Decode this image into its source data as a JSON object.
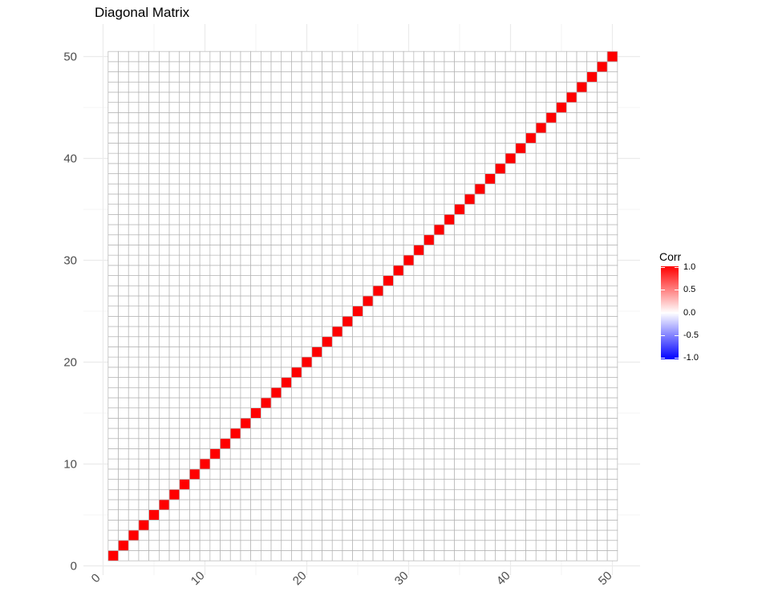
{
  "chart_data": {
    "type": "heatmap",
    "title": "Diagonal Matrix",
    "n": 50,
    "x_ticks": [
      0,
      10,
      20,
      30,
      40,
      50
    ],
    "y_ticks": [
      0,
      10,
      20,
      30,
      40,
      50
    ],
    "xlim": [
      0,
      51
    ],
    "ylim": [
      0,
      51
    ],
    "diagonal_value": 1.0,
    "off_diagonal_value": 0.0,
    "cells": "value 1.0 at (i, i) for i = 1..50; value 0.0 elsewhere",
    "legend": {
      "title": "Corr",
      "ticks": [
        "1.0",
        "0.5",
        "0.0",
        "-0.5",
        "-1.0"
      ],
      "scale_range": [
        -1,
        1
      ],
      "colors": {
        "high": "#ff0000",
        "mid": "#ffffff",
        "low": "#0000ff"
      }
    },
    "grid": true,
    "legend_position": "right",
    "colors": {
      "cell_border": "#b3b3b3",
      "diagonal": "#ff0000",
      "off_diagonal": "#ffffff",
      "panel_grid": "#ebebeb"
    }
  }
}
